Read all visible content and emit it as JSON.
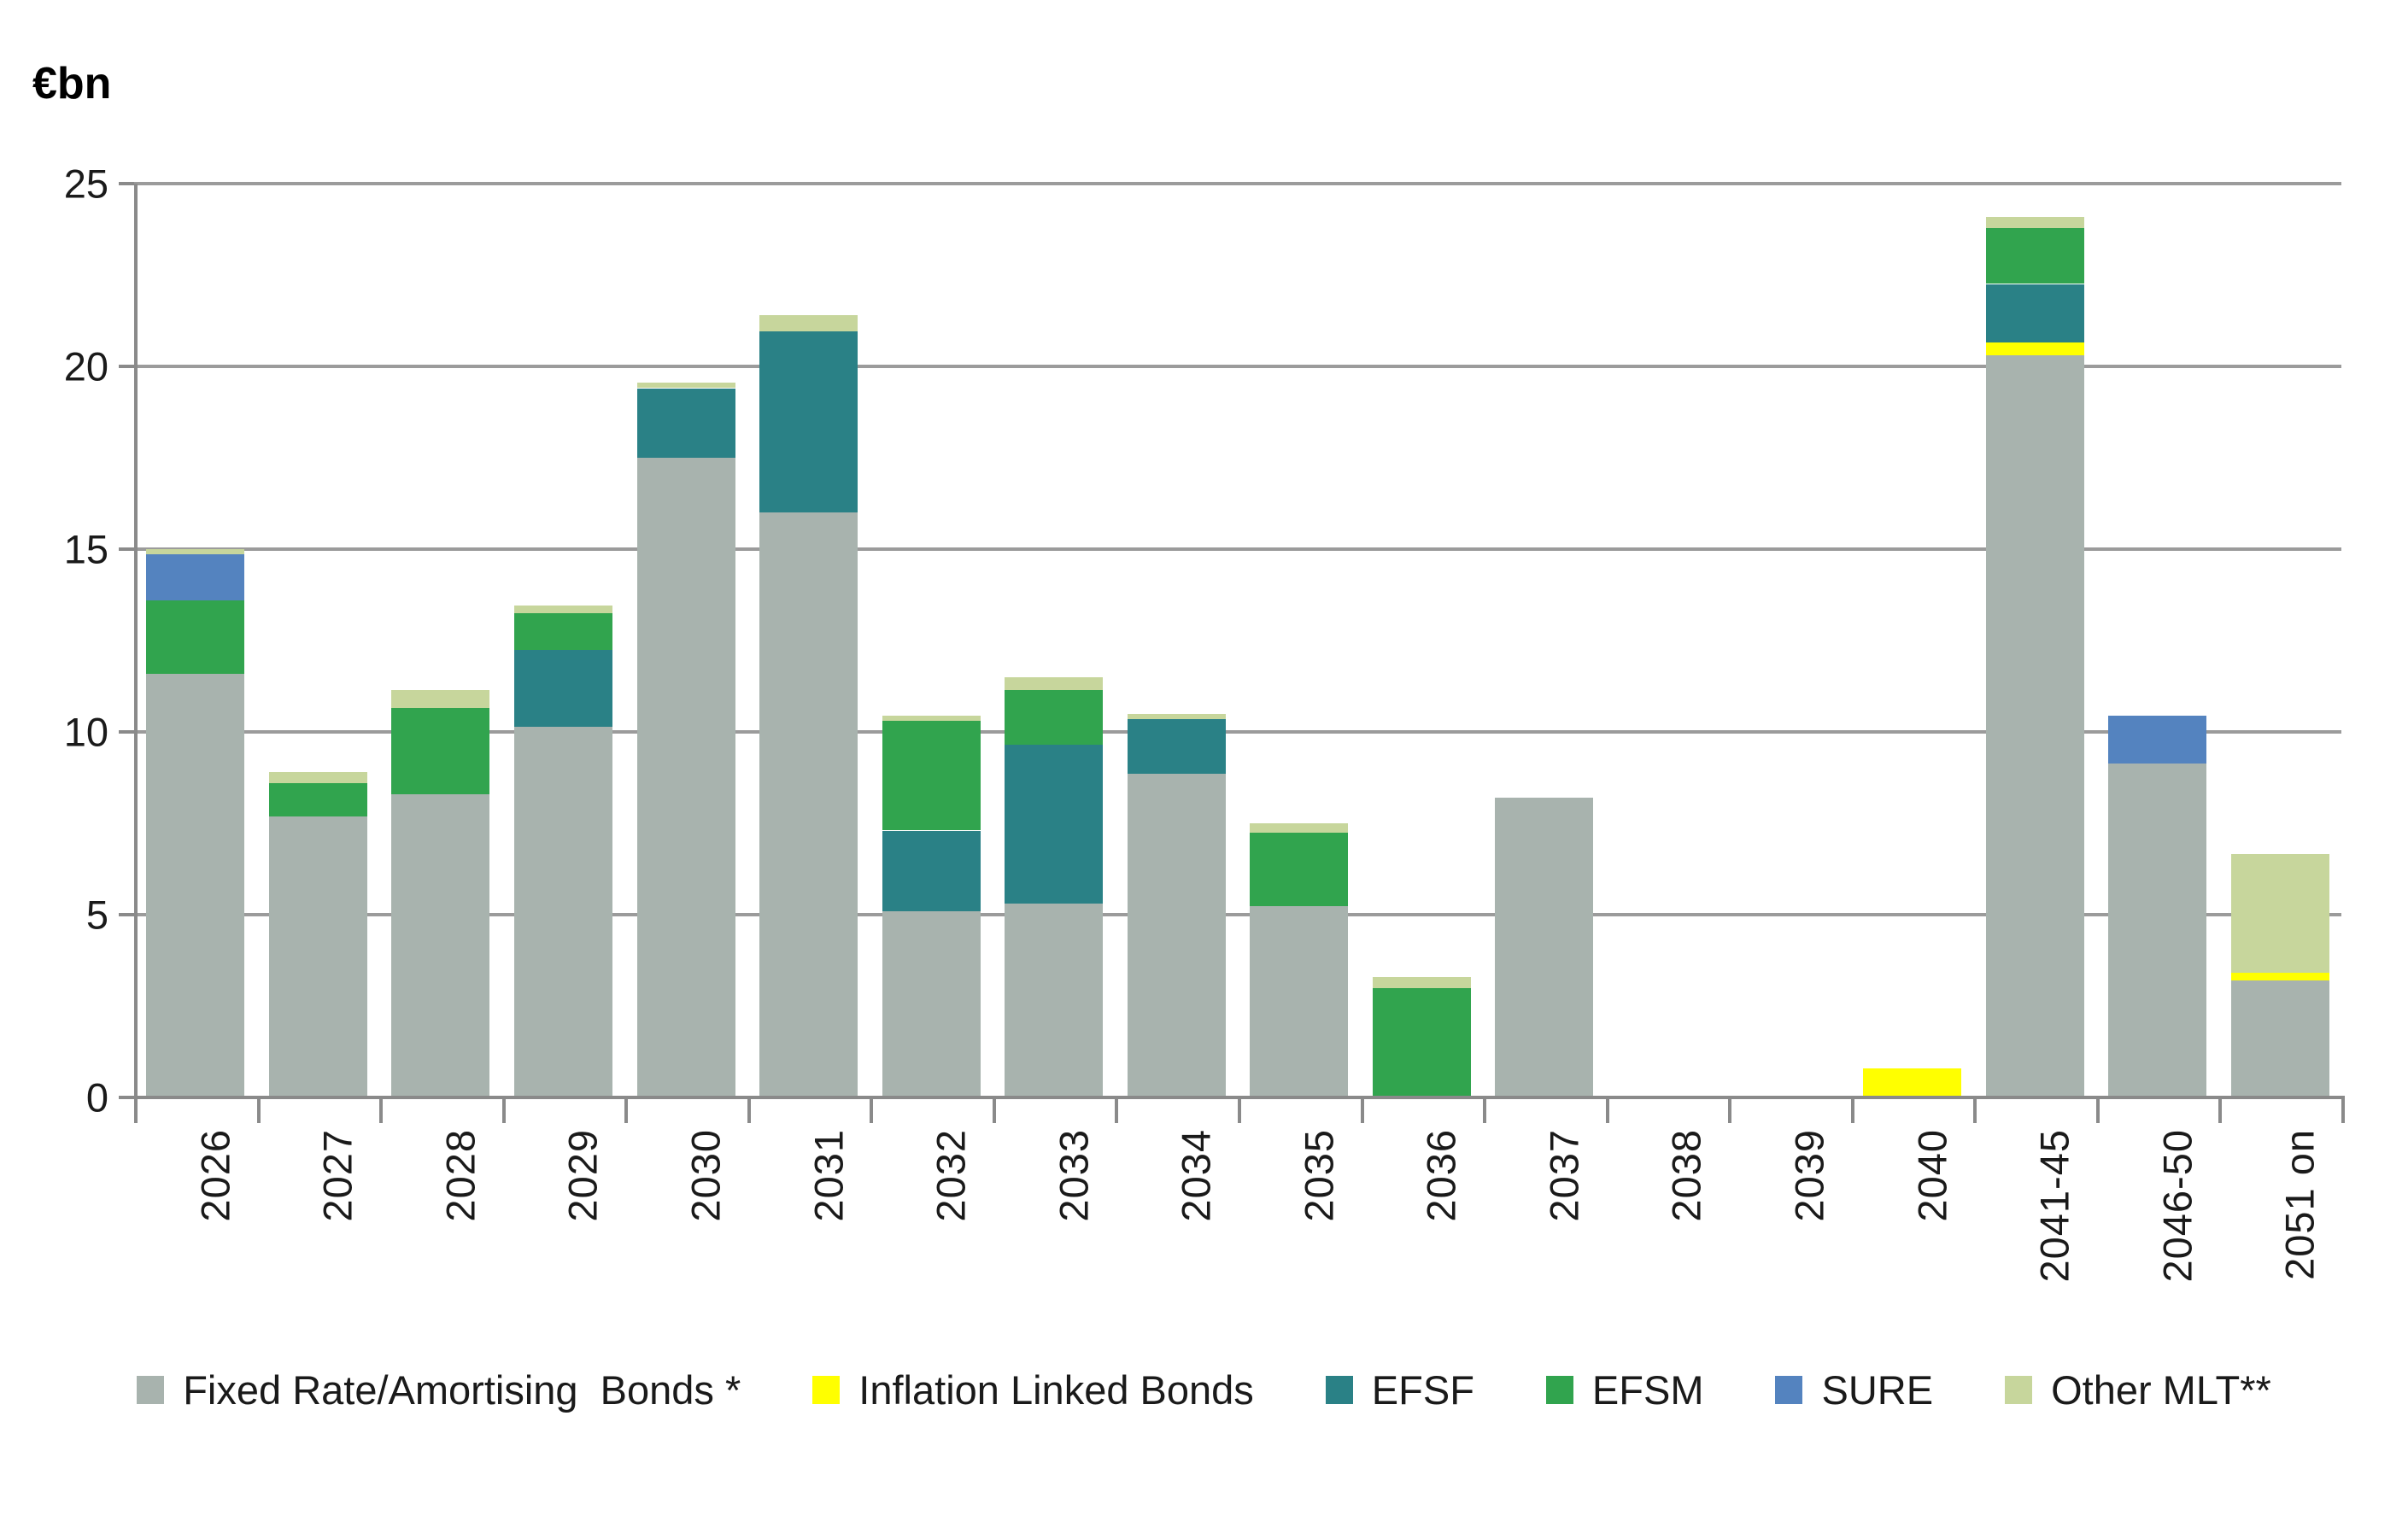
{
  "title": "€bn",
  "y_axis": {
    "ticks": [
      25,
      20,
      15,
      10,
      5,
      0
    ],
    "max": 25
  },
  "colors": {
    "fixed": "#a8b3ae",
    "inflation": "#ffff00",
    "efsf": "#2a8186",
    "efsm": "#31a44e",
    "sure": "#5483bf",
    "other": "#c7d69c",
    "gridline": "#9b9b9b",
    "axis": "#8a8a8a",
    "text": "#1a1a1a"
  },
  "chart_data": {
    "type": "bar",
    "stacked": true,
    "title": "€bn",
    "xlabel": "",
    "ylabel": "€bn",
    "ylim": [
      0,
      25
    ],
    "grid": true,
    "legend_position": "bottom",
    "categories": [
      "2026",
      "2027",
      "2028",
      "2029",
      "2030",
      "2031",
      "2032",
      "2033",
      "2034",
      "2035",
      "2036",
      "2037",
      "2038",
      "2039",
      "2040",
      "2041-45",
      "2046-50",
      "2051 on"
    ],
    "series": [
      {
        "name": "Fixed Rate/Amortising  Bonds *",
        "color_key": "fixed",
        "values": [
          11.6,
          7.7,
          8.3,
          10.15,
          17.5,
          16.0,
          5.1,
          5.3,
          8.85,
          5.25,
          0,
          8.2,
          0,
          0,
          0,
          20.3,
          9.15,
          3.2
        ]
      },
      {
        "name": "Inflation Linked Bonds",
        "color_key": "inflation",
        "values": [
          0,
          0,
          0,
          0,
          0,
          0,
          0,
          0,
          0,
          0,
          0,
          0,
          0,
          0,
          0.8,
          0.35,
          0,
          0.2
        ]
      },
      {
        "name": "EFSF",
        "color_key": "efsf",
        "values": [
          0,
          0,
          0,
          2.1,
          1.9,
          4.95,
          2.2,
          4.35,
          1.5,
          0,
          0,
          0,
          0,
          0,
          0,
          1.6,
          0,
          0
        ]
      },
      {
        "name": "EFSM",
        "color_key": "efsm",
        "values": [
          2.0,
          0.9,
          2.35,
          1.0,
          0,
          0,
          3.0,
          1.5,
          0,
          2.0,
          3.0,
          0,
          0,
          0,
          0,
          1.55,
          0,
          0
        ]
      },
      {
        "name": "SURE",
        "color_key": "sure",
        "values": [
          1.25,
          0,
          0,
          0,
          0,
          0,
          0,
          0,
          0,
          0,
          0,
          0,
          0,
          0,
          0,
          0,
          1.3,
          0
        ]
      },
      {
        "name": "Other MLT**",
        "color_key": "other",
        "values": [
          0.15,
          0.3,
          0.5,
          0.2,
          0.15,
          0.45,
          0.15,
          0.35,
          0.15,
          0.25,
          0.3,
          0,
          0,
          0,
          0,
          0.3,
          0,
          3.25
        ]
      }
    ]
  }
}
